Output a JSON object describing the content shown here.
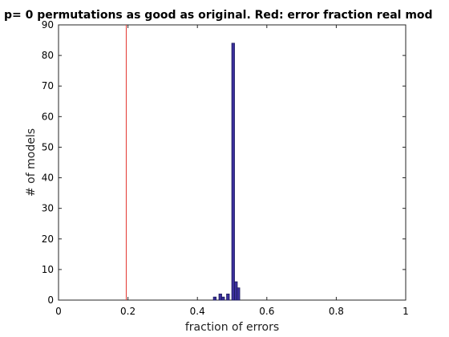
{
  "chart_data": {
    "type": "bar",
    "title": "p= 0 permutations as good as original. Red: error fraction real mod",
    "xlabel": "fraction of errors",
    "ylabel": "# of models",
    "xlim": [
      0,
      1
    ],
    "ylim": [
      0,
      90
    ],
    "xticks": [
      0,
      0.2,
      0.4,
      0.6,
      0.8,
      1
    ],
    "xtick_labels": [
      "0",
      "0.2",
      "0.4",
      "0.6",
      "0.8",
      "1"
    ],
    "yticks": [
      0,
      10,
      20,
      30,
      40,
      50,
      60,
      70,
      80,
      90
    ],
    "ytick_labels": [
      "0",
      "10",
      "20",
      "30",
      "40",
      "50",
      "60",
      "70",
      "80",
      "90"
    ],
    "bin_width": 0.008,
    "bins": [
      {
        "x": 0.45,
        "count": 1
      },
      {
        "x": 0.466,
        "count": 2
      },
      {
        "x": 0.474,
        "count": 1
      },
      {
        "x": 0.488,
        "count": 2
      },
      {
        "x": 0.503,
        "count": 84
      },
      {
        "x": 0.511,
        "count": 6
      },
      {
        "x": 0.518,
        "count": 4
      }
    ],
    "reference_line": {
      "x": 0.195,
      "color": "#e3342f"
    },
    "bar_color": "#3b2f9c",
    "bar_edge_color": "#1a1a5a",
    "grid": false,
    "legend": "none"
  }
}
